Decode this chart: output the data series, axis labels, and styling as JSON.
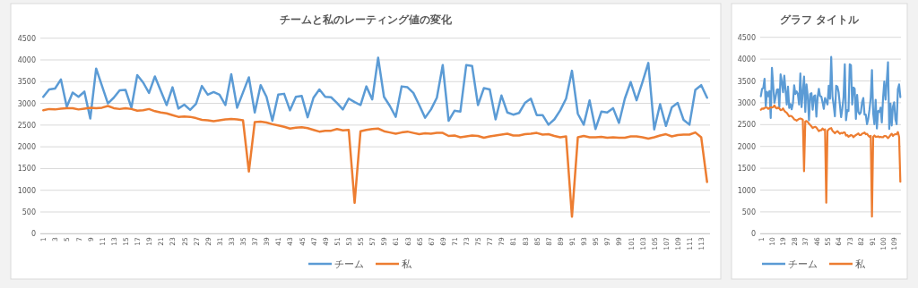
{
  "chart_data": [
    {
      "type": "line",
      "title": "チームと私のレーティング値の変化",
      "categories": [
        "1",
        null,
        "3",
        null,
        "5",
        null,
        "7",
        null,
        "9",
        null,
        "11",
        null,
        "13",
        null,
        "15",
        null,
        "17",
        null,
        "19",
        null,
        "21",
        null,
        "23",
        null,
        "25",
        null,
        "27",
        null,
        "29",
        null,
        "31",
        null,
        "33",
        null,
        "35",
        null,
        "37",
        null,
        "39",
        null,
        "41",
        null,
        "43",
        null,
        "45",
        null,
        "47",
        null,
        "49",
        null,
        "51",
        null,
        "53",
        null,
        "55",
        null,
        "57",
        null,
        "59",
        null,
        "61",
        null,
        "63",
        null,
        "65",
        null,
        "67",
        null,
        "69",
        null,
        "71",
        null,
        "73",
        null,
        "75",
        null,
        "77",
        null,
        "79",
        null,
        "81",
        null,
        "83",
        null,
        "85",
        null,
        "87",
        null,
        "89",
        null,
        "91",
        null,
        "93",
        null,
        "95",
        null,
        "97",
        null,
        "99",
        null,
        "101",
        null,
        "103",
        null,
        "105",
        null,
        "107",
        null,
        "109",
        null,
        "111",
        null,
        "113",
        null
      ],
      "series": [
        {
          "name": "チーム",
          "color": "#5b9bd5",
          "values": [
            3150,
            3320,
            3340,
            3550,
            2920,
            3250,
            3150,
            3270,
            2650,
            3800,
            3400,
            3000,
            3130,
            3300,
            3310,
            2900,
            3650,
            3480,
            3240,
            3620,
            3290,
            2960,
            3370,
            2880,
            2970,
            2850,
            2990,
            3400,
            3200,
            3260,
            3200,
            2960,
            3670,
            2900,
            3250,
            3600,
            2790,
            3420,
            3150,
            2600,
            3200,
            3220,
            2840,
            3150,
            3170,
            2680,
            3130,
            3320,
            3150,
            3140,
            3010,
            2860,
            3110,
            3030,
            2960,
            3390,
            3090,
            4050,
            3150,
            2940,
            2690,
            3390,
            3370,
            3240,
            2960,
            2670,
            2860,
            3130,
            3880,
            2600,
            2830,
            2810,
            3880,
            3860,
            2960,
            3350,
            3320,
            2630,
            3180,
            2790,
            2740,
            2780,
            3010,
            3110,
            2730,
            2730,
            2510,
            2630,
            2840,
            3110,
            3750,
            2760,
            2510,
            3070,
            2410,
            2810,
            2790,
            2890,
            2550,
            3110,
            3490,
            3070,
            3490,
            3930,
            2400,
            2980,
            2480,
            2910,
            3010,
            2620,
            2510,
            3310,
            3420,
            3130
          ]
        },
        {
          "name": "私",
          "color": "#ed7d31",
          "values": [
            2840,
            2870,
            2860,
            2880,
            2890,
            2890,
            2860,
            2880,
            2900,
            2890,
            2900,
            2940,
            2890,
            2870,
            2890,
            2870,
            2830,
            2840,
            2870,
            2820,
            2790,
            2770,
            2730,
            2690,
            2700,
            2690,
            2660,
            2620,
            2610,
            2590,
            2610,
            2630,
            2640,
            2630,
            2610,
            1430,
            2570,
            2580,
            2560,
            2520,
            2490,
            2460,
            2420,
            2440,
            2450,
            2430,
            2390,
            2350,
            2370,
            2370,
            2410,
            2380,
            2390,
            710,
            2360,
            2390,
            2410,
            2420,
            2360,
            2330,
            2300,
            2330,
            2350,
            2320,
            2290,
            2310,
            2300,
            2320,
            2320,
            2250,
            2260,
            2220,
            2240,
            2260,
            2250,
            2210,
            2240,
            2260,
            2280,
            2300,
            2260,
            2260,
            2290,
            2300,
            2320,
            2280,
            2290,
            2250,
            2220,
            2240,
            390,
            2220,
            2250,
            2220,
            2220,
            2230,
            2210,
            2220,
            2210,
            2210,
            2240,
            2240,
            2220,
            2190,
            2220,
            2260,
            2290,
            2240,
            2270,
            2280,
            2280,
            2330,
            2220,
            1190
          ]
        }
      ],
      "ylim": [
        0,
        4500
      ],
      "yticks": [
        0,
        500,
        1000,
        1500,
        2000,
        2500,
        3000,
        3500,
        4000,
        4500
      ],
      "grid": "y",
      "legend": "bottom",
      "line_style": "solid"
    },
    {
      "type": "line",
      "title": "グラフ タイトル",
      "categories": [
        "1",
        null,
        null,
        null,
        null,
        null,
        null,
        null,
        null,
        "10",
        null,
        null,
        null,
        null,
        null,
        null,
        null,
        null,
        "19",
        null,
        null,
        null,
        null,
        null,
        null,
        null,
        null,
        "28",
        null,
        null,
        null,
        null,
        null,
        null,
        null,
        null,
        "37",
        null,
        null,
        null,
        null,
        null,
        null,
        null,
        null,
        "46",
        null,
        null,
        null,
        null,
        null,
        null,
        null,
        null,
        "55",
        null,
        null,
        null,
        null,
        null,
        null,
        null,
        null,
        "64",
        null,
        null,
        null,
        null,
        null,
        null,
        null,
        null,
        "73",
        null,
        null,
        null,
        null,
        null,
        null,
        null,
        null,
        "82",
        null,
        null,
        null,
        null,
        null,
        null,
        null,
        null,
        "91",
        null,
        null,
        null,
        null,
        null,
        null,
        null,
        null,
        "100",
        null,
        null,
        null,
        null,
        null,
        null,
        null,
        null,
        "109",
        null,
        null,
        null,
        null,
        null
      ],
      "series": [
        {
          "name": "チーム",
          "color": "#5b9bd5",
          "values": [
            3150,
            3320,
            3340,
            3550,
            2920,
            3250,
            3150,
            3270,
            2650,
            3800,
            3400,
            3000,
            3130,
            3300,
            3310,
            2900,
            3650,
            3480,
            3240,
            3620,
            3290,
            2960,
            3370,
            2880,
            2970,
            2850,
            2990,
            3400,
            3200,
            3260,
            3200,
            2960,
            3670,
            2900,
            3250,
            3600,
            2790,
            3420,
            3150,
            2600,
            3200,
            3220,
            2840,
            3150,
            3170,
            2680,
            3130,
            3320,
            3150,
            3140,
            3010,
            2860,
            3110,
            3030,
            2960,
            3390,
            3090,
            4050,
            3150,
            2940,
            2690,
            3390,
            3370,
            3240,
            2960,
            2670,
            2860,
            3130,
            3880,
            2600,
            2830,
            2810,
            3880,
            3860,
            2960,
            3350,
            3320,
            2630,
            3180,
            2790,
            2740,
            2780,
            3010,
            3110,
            2730,
            2730,
            2510,
            2630,
            2840,
            3110,
            3750,
            2760,
            2510,
            3070,
            2410,
            2810,
            2790,
            2890,
            2550,
            3110,
            3490,
            3070,
            3490,
            3930,
            2400,
            2980,
            2480,
            2910,
            3010,
            2620,
            2510,
            3310,
            3420,
            3130
          ]
        },
        {
          "name": "私",
          "color": "#ed7d31",
          "values": [
            2840,
            2870,
            2860,
            2880,
            2890,
            2890,
            2860,
            2880,
            2900,
            2890,
            2900,
            2940,
            2890,
            2870,
            2890,
            2870,
            2830,
            2840,
            2870,
            2820,
            2790,
            2770,
            2730,
            2690,
            2700,
            2690,
            2660,
            2620,
            2610,
            2590,
            2610,
            2630,
            2640,
            2630,
            2610,
            1430,
            2570,
            2580,
            2560,
            2520,
            2490,
            2460,
            2420,
            2440,
            2450,
            2430,
            2390,
            2350,
            2370,
            2370,
            2410,
            2380,
            2390,
            710,
            2360,
            2390,
            2410,
            2420,
            2360,
            2330,
            2300,
            2330,
            2350,
            2320,
            2290,
            2310,
            2300,
            2320,
            2320,
            2250,
            2260,
            2220,
            2240,
            2260,
            2250,
            2210,
            2240,
            2260,
            2280,
            2300,
            2260,
            2260,
            2290,
            2300,
            2320,
            2280,
            2290,
            2250,
            2220,
            2240,
            390,
            2220,
            2250,
            2220,
            2220,
            2230,
            2210,
            2220,
            2210,
            2210,
            2240,
            2240,
            2220,
            2190,
            2220,
            2260,
            2290,
            2240,
            2270,
            2280,
            2280,
            2330,
            2220,
            1190
          ]
        }
      ],
      "ylim": [
        0,
        4500
      ],
      "yticks": [
        0,
        500,
        1000,
        1500,
        2000,
        2500,
        3000,
        3500,
        4000,
        4500
      ],
      "grid": "y",
      "legend": "bottom",
      "line_style": "solid"
    }
  ]
}
